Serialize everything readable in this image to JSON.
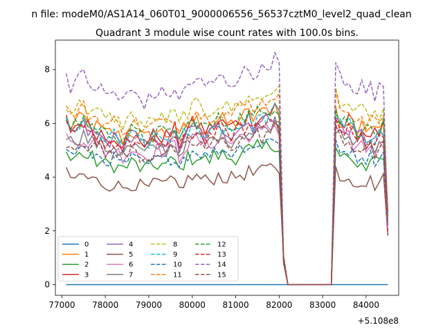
{
  "suptitle": "n file: modeM0/AS1A14_060T01_9000006556_56537cztM0_level2_quad_clean",
  "chart_data": {
    "type": "line",
    "title": "Quadrant 3 module wise count rates with 100.0s bins.",
    "xlabel": "",
    "ylabel": "",
    "offset_text": "+5.108e8",
    "xlim": [
      76850,
      84750
    ],
    "ylim": [
      -0.4,
      9.1
    ],
    "xticks": [
      77000,
      78000,
      79000,
      80000,
      81000,
      82000,
      83000,
      84000
    ],
    "xtick_labels": [
      "77000",
      "78000",
      "79000",
      "80000",
      "81000",
      "82000",
      "83000",
      "84000"
    ],
    "yticks": [
      0,
      2,
      4,
      6,
      8
    ],
    "ytick_labels": [
      "0",
      "2",
      "4",
      "6",
      "8"
    ],
    "segment1": {
      "start": 77100,
      "step": 100,
      "count": 50
    },
    "segment2": {
      "start": 83300,
      "step": 100,
      "count": 13
    },
    "gap_x": [
      82100,
      82200,
      82300,
      82400,
      82500,
      82600,
      82700,
      82800,
      82900,
      83000,
      83100,
      83200
    ],
    "gap_y": [
      0.9,
      0.0,
      0.0,
      0.0,
      0.0,
      0.0,
      0.0,
      0.0,
      0.0,
      0.0,
      0.0,
      0.0
    ],
    "base_profile": [
      1.0,
      0.95,
      0.97,
      0.98,
      1.0,
      0.96,
      0.95,
      0.94,
      0.93,
      0.9,
      0.91,
      0.92,
      0.89,
      0.88,
      0.9,
      0.92,
      0.91,
      0.89,
      0.87,
      0.88,
      0.9,
      0.92,
      0.91,
      0.9,
      0.92,
      0.94,
      0.86,
      0.93,
      0.95,
      0.97,
      0.98,
      0.96,
      0.94,
      0.95,
      0.97,
      0.99,
      0.98,
      0.97,
      0.96,
      0.98,
      1.0,
      1.01,
      1.02,
      1.0,
      1.03,
      1.02,
      1.04,
      1.06,
      1.08,
      1.05
    ],
    "dip_index": 26,
    "seg2_profile": [
      1.05,
      1.0,
      0.97,
      0.99,
      0.95,
      0.93,
      0.95,
      0.92,
      0.94,
      0.91,
      0.93,
      0.95,
      0.4
    ],
    "series": [
      {
        "name": "0",
        "color": "#1f77b4",
        "dash": "solid",
        "level": 0.0,
        "noise": 0.0
      },
      {
        "name": "1",
        "color": "#ff7f0e",
        "dash": "solid",
        "level": 6.2,
        "noise": 0.35
      },
      {
        "name": "2",
        "color": "#2ca02c",
        "dash": "solid",
        "level": 4.9,
        "noise": 0.35
      },
      {
        "name": "3",
        "color": "#d62728",
        "dash": "solid",
        "level": 6.1,
        "noise": 0.35
      },
      {
        "name": "4",
        "color": "#9467bd",
        "dash": "solid",
        "level": 5.9,
        "noise": 0.3
      },
      {
        "name": "5",
        "color": "#8c564b",
        "dash": "solid",
        "level": 4.1,
        "noise": 0.28
      },
      {
        "name": "6",
        "color": "#e377c2",
        "dash": "solid",
        "level": 5.5,
        "noise": 0.32
      },
      {
        "name": "7",
        "color": "#7f7f7f",
        "dash": "solid",
        "level": 5.6,
        "noise": 0.3
      },
      {
        "name": "8",
        "color": "#bcbd22",
        "dash": "dashed",
        "level": 6.8,
        "noise": 0.3
      },
      {
        "name": "9",
        "color": "#17becf",
        "dash": "dashed",
        "level": 6.0,
        "noise": 0.3
      },
      {
        "name": "10",
        "color": "#1f77b4",
        "dash": "dashed",
        "level": 5.1,
        "noise": 0.25
      },
      {
        "name": "11",
        "color": "#ff7f0e",
        "dash": "dashed",
        "level": 6.6,
        "noise": 0.3
      },
      {
        "name": "12",
        "color": "#2ca02c",
        "dash": "dashed",
        "level": 6.2,
        "noise": 0.3
      },
      {
        "name": "13",
        "color": "#d62728",
        "dash": "dashed",
        "level": 5.8,
        "noise": 0.3
      },
      {
        "name": "14",
        "color": "#9467bd",
        "dash": "dashed",
        "level": 7.8,
        "noise": 0.3
      },
      {
        "name": "15",
        "color": "#8c564b",
        "dash": "dashed",
        "level": 5.4,
        "noise": 0.3
      }
    ],
    "legend": {
      "location": "lower-left",
      "columns": 4
    }
  }
}
